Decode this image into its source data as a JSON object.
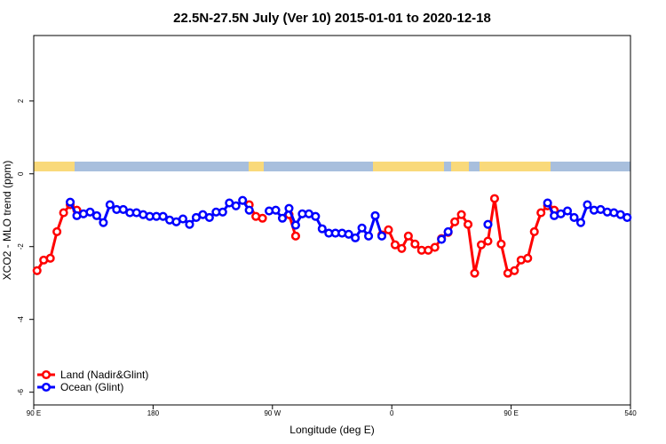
{
  "chart_data": {
    "type": "line",
    "title": "22.5N-27.5N July (Ver 10)   2015-01-01 to 2020-12-18",
    "x_label": "Longitude (deg E)",
    "y_label": "XCO2 - MLO trend (ppm)",
    "x": [
      92.5,
      97.5,
      102.5,
      107.5,
      112.5,
      117.5,
      122.5,
      127.5,
      132.5,
      137.5,
      142.5,
      147.5,
      152.5,
      157.5,
      162.5,
      167.5,
      172.5,
      177.5,
      182.5,
      187.5,
      192.5,
      197.5,
      202.5,
      207.5,
      212.5,
      217.5,
      222.5,
      227.5,
      232.5,
      237.5,
      242.5,
      247.5,
      252.5,
      257.5,
      262.5,
      267.5,
      272.5,
      277.5,
      282.5,
      287.5,
      292.5,
      297.5,
      302.5,
      307.5,
      312.5,
      317.5,
      322.5,
      327.5,
      332.5,
      337.5,
      342.5,
      347.5,
      352.5,
      357.5,
      362.5,
      367.5,
      372.5,
      377.5,
      382.5,
      387.5,
      392.5,
      397.5,
      402.5,
      407.5,
      412.5,
      417.5,
      422.5,
      427.5,
      432.5,
      437.5,
      442.5,
      447.5,
      452.5,
      457.5,
      462.5,
      467.5,
      472.5,
      477.5,
      482.5,
      487.5,
      492.5,
      497.5,
      502.5,
      507.5,
      512.5,
      517.5,
      522.5,
      527.5,
      532.5,
      537.5
    ],
    "series": [
      {
        "name": "Land (Nadir&Glint)",
        "color": "#ff0000",
        "values": [
          -2.66,
          -2.37,
          -2.32,
          -1.59,
          -1.07,
          -0.85,
          -1.0,
          null,
          null,
          null,
          null,
          null,
          null,
          null,
          null,
          null,
          null,
          null,
          null,
          null,
          null,
          null,
          null,
          null,
          null,
          null,
          null,
          null,
          null,
          null,
          null,
          null,
          -0.85,
          -1.17,
          -1.22,
          null,
          null,
          null,
          -1.12,
          -1.71,
          null,
          null,
          null,
          null,
          null,
          null,
          null,
          null,
          null,
          null,
          null,
          null,
          -1.68,
          -1.54,
          -1.95,
          -2.05,
          -1.71,
          -1.93,
          -2.1,
          -2.1,
          -2.02,
          -1.78,
          -1.61,
          -1.32,
          -1.12,
          -1.39,
          -2.73,
          -1.95,
          -1.85,
          -0.68,
          -1.93,
          -2.73,
          -2.66,
          -2.37,
          -2.32,
          -1.59,
          -1.07,
          -0.88,
          -1.0,
          null,
          null,
          null,
          null,
          null,
          null,
          null,
          null,
          null,
          null,
          null
        ]
      },
      {
        "name": "Ocean (Glint)",
        "color": "#0000ff",
        "values": [
          null,
          null,
          null,
          null,
          null,
          -0.78,
          -1.15,
          -1.1,
          -1.05,
          -1.15,
          -1.34,
          -0.85,
          -0.98,
          -0.98,
          -1.07,
          -1.07,
          -1.12,
          -1.17,
          -1.17,
          -1.17,
          -1.27,
          -1.32,
          -1.24,
          -1.39,
          -1.2,
          -1.12,
          -1.2,
          -1.05,
          -1.05,
          -0.8,
          -0.88,
          -0.73,
          -1.0,
          null,
          null,
          -1.02,
          -1.0,
          -1.22,
          -0.95,
          -1.41,
          -1.1,
          -1.1,
          -1.17,
          -1.51,
          -1.63,
          -1.63,
          -1.63,
          -1.66,
          -1.76,
          -1.49,
          -1.71,
          -1.15,
          -1.71,
          null,
          null,
          null,
          null,
          null,
          null,
          null,
          null,
          -1.8,
          -1.59,
          null,
          null,
          null,
          null,
          null,
          -1.39,
          null,
          null,
          null,
          null,
          null,
          null,
          null,
          null,
          -0.8,
          -1.15,
          -1.1,
          -1.02,
          -1.2,
          -1.34,
          -0.85,
          -1.0,
          -0.98,
          -1.05,
          -1.07,
          -1.12,
          -1.2
        ]
      }
    ],
    "xlim": [
      90,
      540
    ],
    "xticks": [
      {
        "value": 90,
        "label": "90 E"
      },
      180,
      {
        "value": 270,
        "label": "90 W"
      },
      {
        "value": 360,
        "label": "0"
      },
      {
        "value": 450,
        "label": "90 E"
      },
      540
    ],
    "ylim": [
      -6.35,
      3.8
    ],
    "yticks": [
      -6,
      -4,
      -2,
      0,
      2
    ],
    "legend": "bottomleft"
  }
}
